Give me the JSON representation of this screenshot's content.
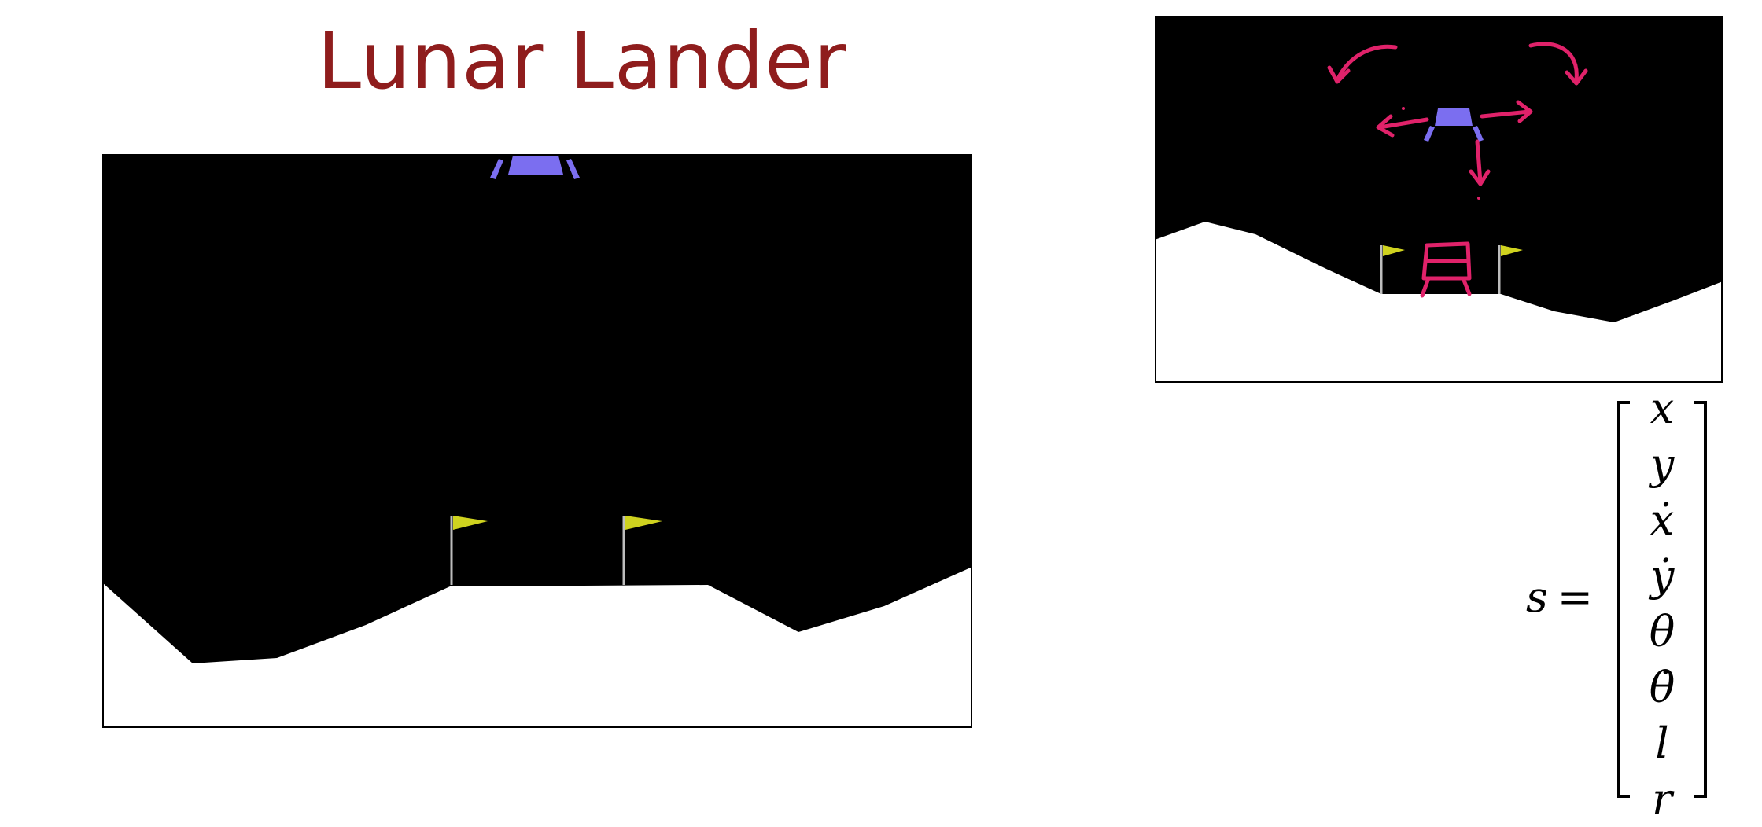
{
  "title": "Lunar Lander",
  "colors": {
    "title": "#8f1d1d",
    "sky": "#000000",
    "ground": "#ffffff",
    "lander": "#7b6ef0",
    "flag": "#cfd21f",
    "annotation": "#e0226a"
  },
  "state_vector": {
    "label": "s",
    "equals": "=",
    "entries": [
      "x",
      "y",
      "ẋ",
      "ẏ",
      "θ",
      "θ̇",
      "l",
      "r"
    ]
  }
}
